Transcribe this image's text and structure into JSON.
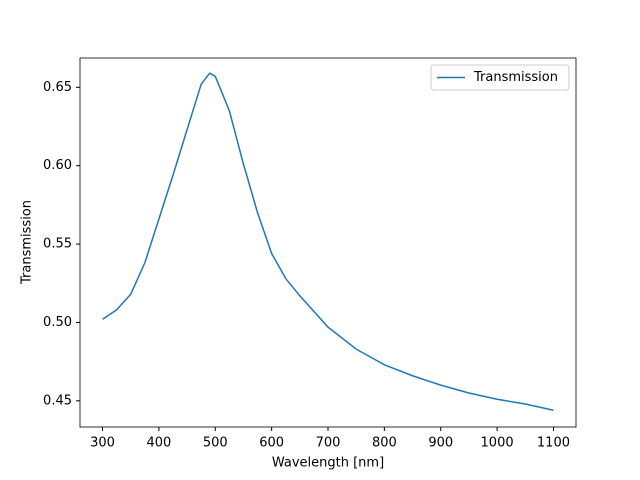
{
  "chart_data": {
    "type": "line",
    "xlabel": "Wavelength [nm]",
    "ylabel": "Transmission",
    "x": [
      300,
      325,
      350,
      375,
      400,
      425,
      450,
      475,
      490,
      500,
      525,
      550,
      575,
      600,
      625,
      650,
      700,
      750,
      800,
      850,
      900,
      950,
      1000,
      1050,
      1100
    ],
    "series": [
      {
        "name": "Transmission",
        "color": "#1f77b4",
        "values": [
          0.502,
          0.508,
          0.518,
          0.538,
          0.566,
          0.594,
          0.623,
          0.652,
          0.659,
          0.657,
          0.635,
          0.601,
          0.57,
          0.544,
          0.528,
          0.517,
          0.497,
          0.483,
          0.473,
          0.466,
          0.46,
          0.455,
          0.451,
          0.448,
          0.444
        ]
      }
    ],
    "xlim": [
      260,
      1140
    ],
    "ylim": [
      0.4333,
      0.6687
    ],
    "xticks": [
      300,
      400,
      500,
      600,
      700,
      800,
      900,
      1000,
      1100
    ],
    "yticks": [
      {
        "value": 0.45,
        "label": "0.45"
      },
      {
        "value": 0.5,
        "label": "0.50"
      },
      {
        "value": 0.55,
        "label": "0.55"
      },
      {
        "value": 0.6,
        "label": "0.60"
      },
      {
        "value": 0.65,
        "label": "0.65"
      }
    ],
    "legend": "upper right"
  }
}
